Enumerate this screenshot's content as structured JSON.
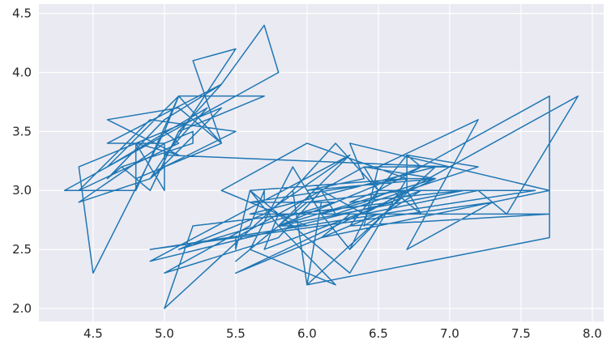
{
  "chart_data": {
    "type": "line",
    "x": [
      5.1,
      4.9,
      4.7,
      4.6,
      5.0,
      5.4,
      4.6,
      5.0,
      4.4,
      4.9,
      5.4,
      4.8,
      4.8,
      4.3,
      5.8,
      5.7,
      5.4,
      5.1,
      5.7,
      5.1,
      5.4,
      5.1,
      4.6,
      5.1,
      4.8,
      5.0,
      5.0,
      5.2,
      5.2,
      4.7,
      4.8,
      5.4,
      5.2,
      5.5,
      4.9,
      5.0,
      5.5,
      4.9,
      4.4,
      5.1,
      5.0,
      4.5,
      4.4,
      5.0,
      5.1,
      4.8,
      5.1,
      4.6,
      5.3,
      5.0,
      7.0,
      6.4,
      6.9,
      5.5,
      6.5,
      5.7,
      6.3,
      4.9,
      6.6,
      5.2,
      5.0,
      5.9,
      6.0,
      6.1,
      5.6,
      6.7,
      5.6,
      5.8,
      6.2,
      5.6,
      5.9,
      6.1,
      6.3,
      6.1,
      6.4,
      6.6,
      6.8,
      6.7,
      6.0,
      5.7,
      5.5,
      5.5,
      5.8,
      6.0,
      5.4,
      6.0,
      6.7,
      6.3,
      5.6,
      5.5,
      5.5,
      6.1,
      5.8,
      5.0,
      5.6,
      5.7,
      5.7,
      6.2,
      5.1,
      5.7,
      6.3,
      5.8,
      7.1,
      6.3,
      6.5,
      7.6,
      4.9,
      7.3,
      6.7,
      7.2,
      6.5,
      6.4,
      6.8,
      5.7,
      5.8,
      6.4,
      6.5,
      7.7,
      7.7,
      6.0,
      6.9,
      5.6,
      7.7,
      6.3,
      6.7,
      7.2,
      6.2,
      6.1,
      6.4,
      7.2,
      7.4,
      7.9,
      6.4,
      6.3,
      6.1,
      7.7,
      6.3,
      6.4,
      6.0,
      6.9,
      6.7,
      6.9,
      5.8,
      6.8,
      6.7,
      6.7,
      6.3,
      6.5,
      6.2,
      5.9
    ],
    "series": [
      {
        "color": "#1f77b4",
        "values": [
          3.5,
          3.0,
          3.2,
          3.1,
          3.6,
          3.9,
          3.4,
          3.4,
          2.9,
          3.1,
          3.7,
          3.4,
          3.0,
          3.0,
          4.0,
          4.4,
          3.9,
          3.5,
          3.8,
          3.8,
          3.4,
          3.7,
          3.6,
          3.3,
          3.4,
          3.0,
          3.4,
          3.5,
          3.4,
          3.2,
          3.1,
          3.4,
          4.1,
          4.2,
          3.1,
          3.2,
          3.5,
          3.6,
          3.0,
          3.4,
          3.5,
          2.3,
          3.2,
          3.5,
          3.8,
          3.0,
          3.8,
          3.2,
          3.7,
          3.3,
          3.2,
          3.2,
          3.1,
          2.3,
          2.8,
          2.8,
          3.3,
          2.4,
          2.9,
          2.7,
          2.0,
          3.0,
          2.2,
          2.9,
          2.9,
          3.1,
          3.0,
          2.7,
          2.2,
          2.5,
          3.2,
          2.8,
          2.5,
          2.8,
          2.9,
          3.0,
          2.8,
          3.0,
          2.9,
          2.6,
          2.4,
          2.4,
          2.7,
          2.7,
          3.0,
          3.4,
          3.1,
          2.3,
          3.0,
          2.5,
          2.6,
          3.0,
          2.6,
          2.3,
          2.7,
          3.0,
          2.9,
          2.9,
          2.5,
          2.8,
          3.3,
          2.7,
          3.0,
          2.9,
          3.0,
          3.0,
          2.5,
          2.9,
          2.5,
          3.6,
          3.2,
          2.7,
          3.0,
          2.5,
          2.8,
          3.2,
          3.0,
          3.8,
          2.6,
          2.2,
          3.2,
          2.8,
          2.8,
          2.7,
          3.3,
          3.2,
          2.8,
          3.0,
          2.8,
          3.0,
          2.8,
          3.8,
          2.8,
          2.8,
          2.6,
          3.0,
          3.4,
          3.1,
          3.0,
          3.1,
          3.1,
          3.1,
          2.7,
          3.2,
          3.3,
          3.0,
          2.5,
          3.0,
          3.4,
          3.0
        ]
      }
    ],
    "xlim": [
      4.12,
      8.08
    ],
    "ylim": [
      1.89,
      4.58
    ],
    "xticks": [
      {
        "value": 4.5,
        "label": "4.5"
      },
      {
        "value": 5,
        "label": "5.0"
      },
      {
        "value": 5.5,
        "label": "5.5"
      },
      {
        "value": 6,
        "label": "6.0"
      },
      {
        "value": 6.5,
        "label": "6.5"
      },
      {
        "value": 7,
        "label": "7.0"
      },
      {
        "value": 7.5,
        "label": "7.5"
      },
      {
        "value": 8,
        "label": "8.0"
      }
    ],
    "yticks": [
      {
        "value": 2,
        "label": "2.0"
      },
      {
        "value": 2.5,
        "label": "2.5"
      },
      {
        "value": 3,
        "label": "3.0"
      },
      {
        "value": 3.5,
        "label": "3.5"
      },
      {
        "value": 4,
        "label": "4.0"
      },
      {
        "value": 4.5,
        "label": "4.5"
      }
    ],
    "grid": true
  }
}
